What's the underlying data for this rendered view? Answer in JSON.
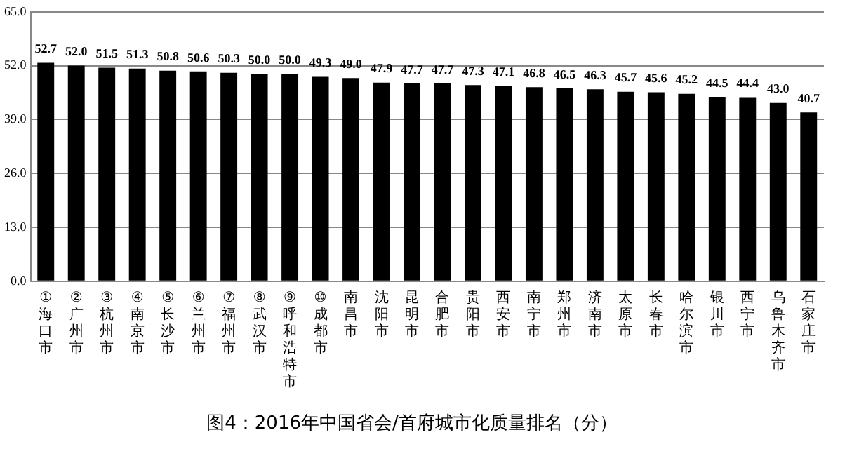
{
  "chart_data": {
    "type": "bar",
    "title": "图4：2016年中国省会/首府城市化质量排名（分）",
    "categories": [
      "①海口市",
      "②广州市",
      "③杭州市",
      "④南京市",
      "⑤长沙市",
      "⑥兰州市",
      "⑦福州市",
      "⑧武汉市",
      "⑨呼和浩特市",
      "⑩成都市",
      "南昌市",
      "沈阳市",
      "昆明市",
      "合肥市",
      "贵阳市",
      "西安市",
      "南宁市",
      "郑州市",
      "济南市",
      "太原市",
      "长春市",
      "哈尔滨市",
      "银川市",
      "西宁市",
      "乌鲁木齐市",
      "石家庄市"
    ],
    "values": [
      52.7,
      52.0,
      51.5,
      51.3,
      50.8,
      50.6,
      50.3,
      50.0,
      50.0,
      49.3,
      49.0,
      47.9,
      47.7,
      47.7,
      47.3,
      47.1,
      46.8,
      46.5,
      46.3,
      45.7,
      45.6,
      45.2,
      44.5,
      44.4,
      43.0,
      40.7
    ],
    "value_labels": [
      "52.7",
      "52.0",
      "51.5",
      "51.3",
      "50.8",
      "50.6",
      "50.3",
      "50.0",
      "50.0",
      "49.3",
      "49.0",
      "47.9",
      "47.7",
      "47.7",
      "47.3",
      "47.1",
      "46.8",
      "46.5",
      "46.3",
      "45.7",
      "45.6",
      "45.2",
      "44.5",
      "44.4",
      "43.0",
      "40.7"
    ],
    "color": "#000000",
    "ylim": [
      0,
      65
    ],
    "yticks": [
      {
        "value": 0,
        "label": "0.0"
      },
      {
        "value": 13,
        "label": "13.0"
      },
      {
        "value": 26,
        "label": "26.0"
      },
      {
        "value": 39,
        "label": "39.0"
      },
      {
        "value": 52,
        "label": "52.0"
      },
      {
        "value": 65,
        "label": "65.0"
      }
    ],
    "grid": "y"
  }
}
